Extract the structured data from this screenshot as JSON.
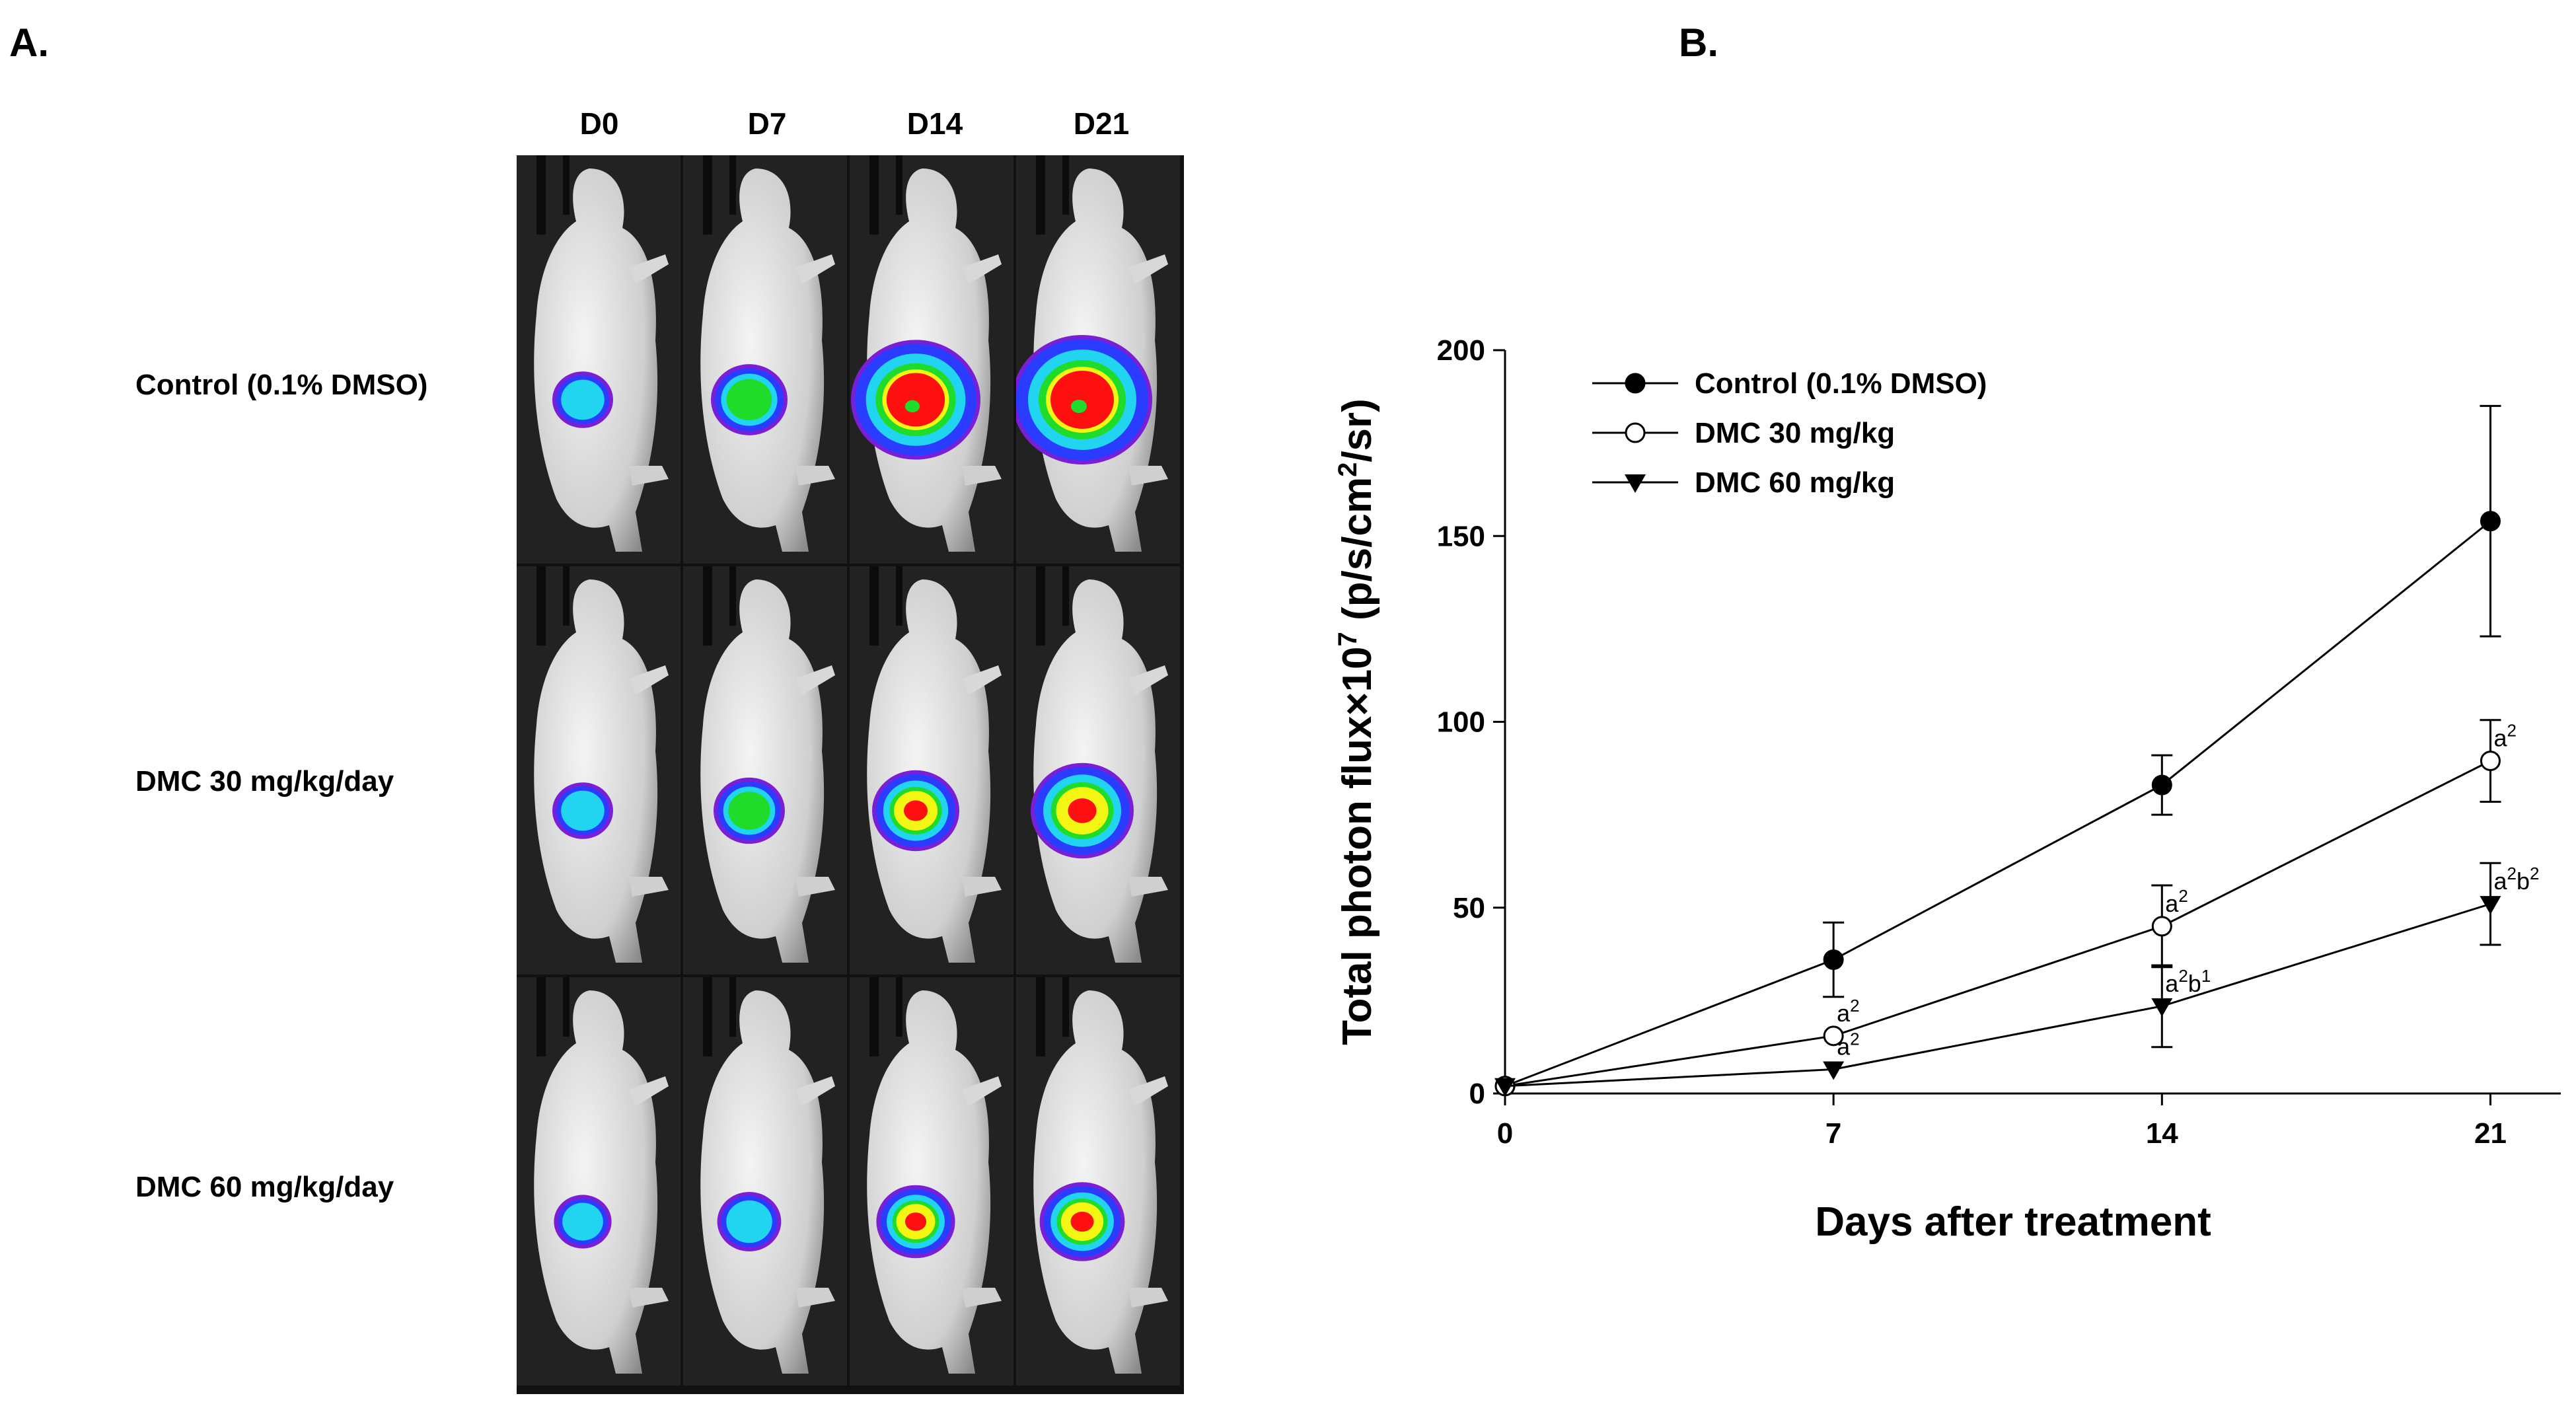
{
  "panels": {
    "a_label": "A.",
    "b_label": "B."
  },
  "imaging": {
    "days": [
      "D0",
      "D7",
      "D14",
      "D21"
    ],
    "groups": [
      "Control (0.1% DMSO)",
      "DMC 30 mg/kg/day",
      "DMC 60 mg/kg/day"
    ],
    "signal_levels": [
      [
        0.15,
        0.3,
        0.8,
        0.9
      ],
      [
        0.15,
        0.25,
        0.4,
        0.55
      ],
      [
        0.12,
        0.18,
        0.32,
        0.38
      ]
    ],
    "colors": {
      "blue": "#2a3cff",
      "cyan": "#21d4f0",
      "green": "#1fdc2a",
      "yellow": "#f3f512",
      "red": "#ff1010",
      "purple": "#7a1fd6"
    }
  },
  "chart_data": {
    "type": "line",
    "xlabel": "Days after treatment",
    "ylabel": {
      "main": "Total photon flux",
      "times": "×",
      "ten": "10",
      "exp7": "7",
      "unit_open": " (p/s/cm",
      "exp2": "2",
      "unit_close": "/sr)"
    },
    "x_ticks": [
      "0",
      "7",
      "14",
      "21"
    ],
    "y_ticks": [
      "0",
      "50",
      "100",
      "150",
      "200"
    ],
    "xlim": [
      0,
      22.5
    ],
    "ylim": [
      0,
      200
    ],
    "grid": false,
    "legend_position": "top-left",
    "series": [
      {
        "name": "Control (0.1% DMSO)",
        "marker": "filled-circle",
        "x": [
          0,
          7,
          14,
          21
        ],
        "y": [
          2,
          36,
          83,
          154
        ],
        "err": [
          0,
          10,
          8,
          31
        ]
      },
      {
        "name": "DMC 30 mg/kg",
        "marker": "open-circle",
        "x": [
          0,
          7,
          14,
          21
        ],
        "y": [
          2,
          15.5,
          45,
          89.5
        ],
        "err": [
          0,
          0,
          11,
          11
        ]
      },
      {
        "name": "DMC 60 mg/kg",
        "marker": "filled-triangle-down",
        "x": [
          0,
          7,
          14,
          21
        ],
        "y": [
          2,
          6.5,
          23.5,
          51
        ],
        "err": [
          0,
          0,
          11,
          11
        ]
      }
    ],
    "annotations": [
      {
        "x": 7,
        "y": 15.5,
        "text": "a",
        "sup": "2"
      },
      {
        "x": 7,
        "y": 6.5,
        "text": "a",
        "sup": "2"
      },
      {
        "x": 14,
        "y": 45,
        "text": "a",
        "sup": "2"
      },
      {
        "x": 14,
        "y": 23.5,
        "text": "a",
        "sup": "2",
        "text2": "b",
        "sup2": "1"
      },
      {
        "x": 21,
        "y": 89.5,
        "text": "a",
        "sup": "2"
      },
      {
        "x": 21,
        "y": 51,
        "text": "a",
        "sup": "2",
        "text2": "b",
        "sup2": "2"
      }
    ]
  }
}
